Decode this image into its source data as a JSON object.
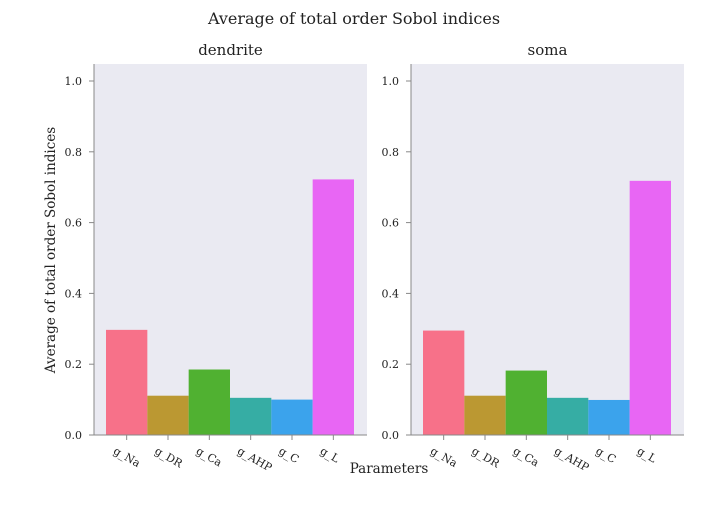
{
  "title": "Average of total order Sobol indices",
  "xlabel": "Parameters",
  "ylabel": "Average of total order Sobol indices",
  "colors": [
    "#f77189",
    "#bb9832",
    "#50b131",
    "#36ada4",
    "#3ba3ec",
    "#e866f4"
  ],
  "panel_background": "#eaeaf2",
  "chart_data": [
    {
      "type": "bar",
      "title": "dendrite",
      "categories": [
        "g_Na",
        "g_DR",
        "g_Ca",
        "g_AHP",
        "g_C",
        "g_L"
      ],
      "values": [
        0.297,
        0.111,
        0.185,
        0.105,
        0.1,
        0.722
      ],
      "ylim": [
        0,
        1.05
      ],
      "yticks": [
        "0.0",
        "0.2",
        "0.4",
        "0.6",
        "0.8",
        "1.0"
      ],
      "grid": false
    },
    {
      "type": "bar",
      "title": "soma",
      "categories": [
        "g_Na",
        "g_DR",
        "g_Ca",
        "g_AHP",
        "g_C",
        "g_L"
      ],
      "values": [
        0.295,
        0.111,
        0.182,
        0.105,
        0.099,
        0.718
      ],
      "ylim": [
        0,
        1.05
      ],
      "yticks": [
        "0.0",
        "0.2",
        "0.4",
        "0.6",
        "0.8",
        "1.0"
      ],
      "grid": false
    }
  ]
}
